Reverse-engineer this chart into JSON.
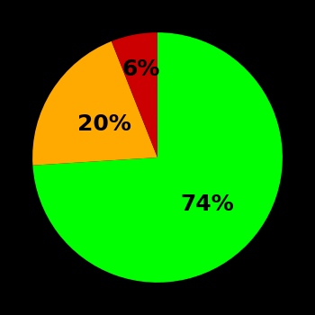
{
  "slices": [
    74,
    20,
    6
  ],
  "colors": [
    "#00ff00",
    "#ffaa00",
    "#cc0000"
  ],
  "labels": [
    "74%",
    "20%",
    "6%"
  ],
  "background_color": "#000000",
  "startangle": 90,
  "label_fontsize": 18,
  "label_fontweight": "bold",
  "label_radii": [
    0.55,
    0.5,
    0.72
  ]
}
